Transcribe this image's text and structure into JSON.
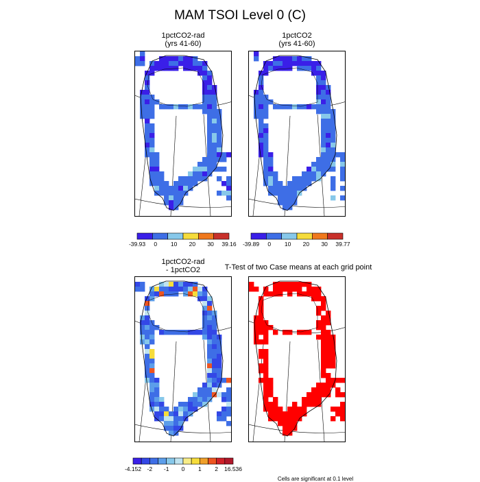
{
  "figure": {
    "title": "MAM TSOI Level 0 (C)",
    "ttest_title": "T-Test of two Case means at each grid point",
    "footnote": "Cells are significant at 0.1 level"
  },
  "panels": [
    {
      "title_line1": "1pctCO2-rad",
      "title_line2": "(yrs 41-60)"
    },
    {
      "title_line1": "1pctCO2",
      "title_line2": "(yrs 41-60)"
    },
    {
      "title_line1": "1pctCO2-rad",
      "title_line2": "- 1pctCO2"
    },
    {
      "title_line1": "",
      "title_line2": ""
    }
  ],
  "colorbars": [
    {
      "colors": [
        "#3a1fe8",
        "#3e6ee6",
        "#87c8ea",
        "#f6dc3b",
        "#f0781c",
        "#c8302a"
      ],
      "labels": [
        "-39.93",
        "0",
        "10",
        "20",
        "30",
        "39.16"
      ]
    },
    {
      "colors": [
        "#3a1fe8",
        "#3e6ee6",
        "#87c8ea",
        "#f6dc3b",
        "#f0781c",
        "#c8302a"
      ],
      "labels": [
        "-39.89",
        "0",
        "10",
        "20",
        "30",
        "39.77"
      ]
    },
    {
      "colors": [
        "#3a1fe8",
        "#3347e6",
        "#3e6ee6",
        "#5c9eea",
        "#87c8ea",
        "#bfe3f0",
        "#f7ec87",
        "#f6dc3b",
        "#f0a02a",
        "#ee5420",
        "#d02028",
        "#b0182a"
      ],
      "labels": [
        "-4.152",
        "-2",
        "-1",
        "0",
        "1",
        "2",
        "16.536"
      ]
    }
  ],
  "chart_data": [
    {
      "type": "heatmap",
      "title": "1pctCO2-rad (yrs 41-60)",
      "levels": [
        -39.93,
        0,
        10,
        20,
        30,
        39.16
      ],
      "dominant_value_class": "below 0 (blue)"
    },
    {
      "type": "heatmap",
      "title": "1pctCO2 (yrs 41-60)",
      "levels": [
        -39.89,
        0,
        10,
        20,
        30,
        39.77
      ],
      "dominant_value_class": "below 0 (blue)"
    },
    {
      "type": "heatmap",
      "title": "1pctCO2-rad - 1pctCO2",
      "levels": [
        -4.152,
        -2,
        -1,
        0,
        1,
        2,
        16.536
      ],
      "dominant_value_class": "between -2 and 0"
    },
    {
      "type": "heatmap",
      "title": "T-Test of two Case means at each grid point",
      "significance_level": 0.1,
      "significant_color": "#ff0000"
    }
  ]
}
